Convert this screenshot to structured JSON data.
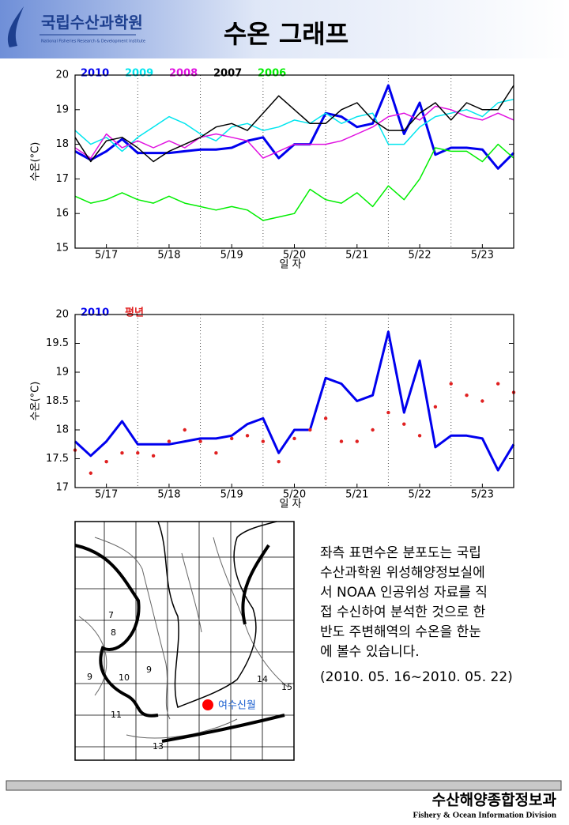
{
  "header": {
    "org_name": "국립수산과학원",
    "org_subtitle": "National Fisheries Research & Development Institute",
    "title": "수온 그래프"
  },
  "chart_data": [
    {
      "type": "line",
      "xlabel": "일 자",
      "ylabel": "수온(°C)",
      "x": [
        17,
        17.25,
        17.5,
        17.75,
        18,
        18.25,
        18.5,
        18.75,
        19,
        19.25,
        19.5,
        19.75,
        20,
        20.25,
        20.5,
        20.75,
        21,
        21.25,
        21.5,
        21.75,
        22,
        22.25,
        22.5,
        22.75,
        23,
        23.25,
        23.5,
        23.75,
        24
      ],
      "xlim": [
        17,
        24
      ],
      "xticks": [
        {
          "value": 17.5,
          "label": "5/17"
        },
        {
          "value": 18.5,
          "label": "5/18"
        },
        {
          "value": 19.5,
          "label": "5/19"
        },
        {
          "value": 20.5,
          "label": "5/20"
        },
        {
          "value": 21.5,
          "label": "5/21"
        },
        {
          "value": 22.5,
          "label": "5/22"
        },
        {
          "value": 23.5,
          "label": "5/23"
        }
      ],
      "xgrid": [
        18,
        19,
        20,
        21,
        22,
        23
      ],
      "ylim": [
        15,
        20
      ],
      "yticks": [
        15,
        16,
        17,
        18,
        19,
        20
      ],
      "series": [
        {
          "name": "2010",
          "color": "#0000ee",
          "width": 3,
          "values": [
            17.8,
            17.55,
            17.8,
            18.15,
            17.75,
            17.75,
            17.75,
            17.8,
            17.85,
            17.85,
            17.9,
            18.1,
            18.2,
            17.6,
            18.0,
            18.0,
            18.9,
            18.8,
            18.5,
            18.6,
            19.7,
            18.3,
            19.2,
            17.7,
            17.9,
            17.9,
            17.85,
            17.3,
            17.75
          ]
        },
        {
          "name": "2009",
          "color": "#00e5ee",
          "width": 1.5,
          "values": [
            18.4,
            18.0,
            18.2,
            17.8,
            18.2,
            18.5,
            18.8,
            18.6,
            18.3,
            18.1,
            18.5,
            18.6,
            18.4,
            18.5,
            18.7,
            18.6,
            18.9,
            18.6,
            18.8,
            18.9,
            18.0,
            18.0,
            18.5,
            18.8,
            18.9,
            19.0,
            18.8,
            19.2,
            19.3
          ]
        },
        {
          "name": "2008",
          "color": "#e010e0",
          "width": 1.5,
          "values": [
            17.9,
            17.6,
            18.3,
            17.9,
            18.1,
            17.9,
            18.1,
            17.9,
            18.2,
            18.3,
            18.2,
            18.1,
            17.6,
            17.8,
            18.0,
            18.0,
            18.0,
            18.1,
            18.3,
            18.5,
            18.8,
            18.9,
            18.7,
            19.1,
            19.0,
            18.8,
            18.7,
            18.9,
            18.7
          ]
        },
        {
          "name": "2007",
          "color": "#000000",
          "width": 1.5,
          "values": [
            18.2,
            17.5,
            18.1,
            18.2,
            17.9,
            17.5,
            17.8,
            18.0,
            18.2,
            18.5,
            18.6,
            18.4,
            18.9,
            19.4,
            19.0,
            18.6,
            18.6,
            19.0,
            19.2,
            18.7,
            18.4,
            18.4,
            18.9,
            19.2,
            18.7,
            19.2,
            19.0,
            19.0,
            19.7
          ]
        },
        {
          "name": "2006",
          "color": "#00ee00",
          "width": 1.5,
          "values": [
            16.5,
            16.3,
            16.4,
            16.6,
            16.4,
            16.3,
            16.5,
            16.3,
            16.2,
            16.1,
            16.2,
            16.1,
            15.8,
            15.9,
            16.0,
            16.7,
            16.4,
            16.3,
            16.6,
            16.2,
            16.8,
            16.4,
            17.0,
            17.9,
            17.8,
            17.8,
            17.5,
            18.0,
            17.6
          ]
        }
      ]
    },
    {
      "type": "line",
      "xlabel": "일 자",
      "ylabel": "수온(°C)",
      "x": [
        17,
        17.25,
        17.5,
        17.75,
        18,
        18.25,
        18.5,
        18.75,
        19,
        19.25,
        19.5,
        19.75,
        20,
        20.25,
        20.5,
        20.75,
        21,
        21.25,
        21.5,
        21.75,
        22,
        22.25,
        22.5,
        22.75,
        23,
        23.25,
        23.5,
        23.75,
        24
      ],
      "xlim": [
        17,
        24
      ],
      "xticks": [
        {
          "value": 17.5,
          "label": "5/17"
        },
        {
          "value": 18.5,
          "label": "5/18"
        },
        {
          "value": 19.5,
          "label": "5/19"
        },
        {
          "value": 20.5,
          "label": "5/20"
        },
        {
          "value": 21.5,
          "label": "5/21"
        },
        {
          "value": 22.5,
          "label": "5/22"
        },
        {
          "value": 23.5,
          "label": "5/23"
        }
      ],
      "xgrid": [
        18,
        19,
        20,
        21,
        22,
        23
      ],
      "ylim": [
        17,
        20
      ],
      "yticks": [
        17,
        17.5,
        18,
        18.5,
        19,
        19.5,
        20
      ],
      "series": [
        {
          "name": "2010",
          "color": "#0000ee",
          "width": 3,
          "values": [
            17.8,
            17.55,
            17.8,
            18.15,
            17.75,
            17.75,
            17.75,
            17.8,
            17.85,
            17.85,
            17.9,
            18.1,
            18.2,
            17.6,
            18.0,
            18.0,
            18.9,
            18.8,
            18.5,
            18.6,
            19.7,
            18.3,
            19.2,
            17.7,
            17.9,
            17.9,
            17.85,
            17.3,
            17.75
          ]
        },
        {
          "name": "평년",
          "color": "#e02020",
          "style": "markers",
          "values": [
            17.65,
            17.25,
            17.45,
            17.6,
            17.6,
            17.55,
            17.8,
            18.0,
            17.8,
            17.6,
            17.85,
            17.9,
            17.8,
            17.45,
            17.85,
            18.0,
            18.2,
            17.8,
            17.8,
            18.0,
            18.3,
            18.1,
            17.9,
            18.4,
            18.8,
            18.6,
            18.5,
            18.8,
            18.65
          ]
        }
      ]
    }
  ],
  "map": {
    "labels": [
      "7",
      "8",
      "9",
      "10",
      "9",
      "11",
      "13",
      "14",
      "15",
      "여수신월"
    ]
  },
  "description": {
    "lines": [
      "좌측 표면수온 분포도는 국립",
      "수산과학원 위성해양정보실에",
      "서 NOAA 인공위성 자료를 직",
      "접 수신하여 분석한 것으로 한",
      "반도 주변해역의 수온을 한눈",
      "에 볼수 있습니다."
    ],
    "period": "(2010. 05. 16~2010. 05. 22)"
  },
  "footer": {
    "division_ko": "수산해양종합정보과",
    "division_en": "Fishery & Ocean Information Division"
  }
}
